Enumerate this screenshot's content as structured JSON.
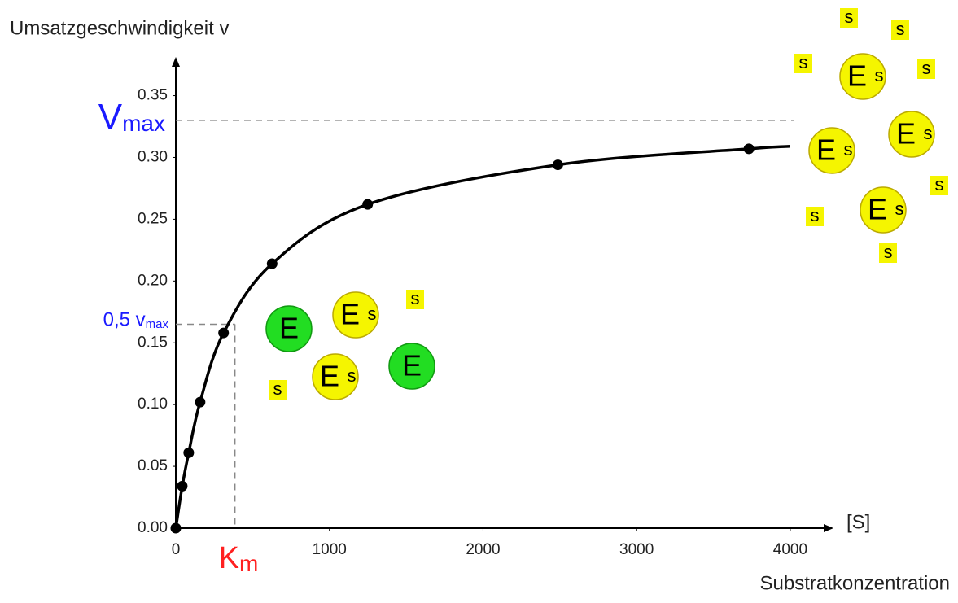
{
  "chart_data": {
    "type": "line",
    "y_label": "Umsatzgeschwindigkeit v",
    "x_arrow_label": "[S]",
    "x_label": "Substratkonzentration",
    "xlim": [
      0,
      4260
    ],
    "ylim": [
      0,
      0.38
    ],
    "xticks": [
      0,
      1000,
      2000,
      3000,
      4000
    ],
    "yticks": [
      {
        "value": 0,
        "label": "0.00"
      },
      {
        "value": 0.05,
        "label": "0.05"
      },
      {
        "value": 0.1,
        "label": "0.10"
      },
      {
        "value": 0.15,
        "label": "0.15"
      },
      {
        "value": 0.2,
        "label": "0.20"
      },
      {
        "value": 0.25,
        "label": "0.25"
      },
      {
        "value": 0.3,
        "label": "0.30"
      },
      {
        "value": 0.35,
        "label": "0.35"
      }
    ],
    "series": [
      {
        "color": "#000000",
        "markers": false,
        "x": [
          0,
          42,
          84,
          158,
          311,
          627,
          1249,
          2487,
          3731,
          4000
        ],
        "values": [
          0,
          0.034,
          0.061,
          0.102,
          0.158,
          0.214,
          0.262,
          0.294,
          0.307,
          0.309
        ]
      },
      {
        "color": "#000000",
        "markers": true,
        "x": [
          0,
          42,
          84,
          158,
          311,
          627,
          1249,
          2487,
          3731
        ],
        "values": [
          0,
          0.034,
          0.061,
          0.102,
          0.158,
          0.214,
          0.262,
          0.294,
          0.307
        ]
      }
    ],
    "vmax": {
      "value": 0.33,
      "label": "V",
      "sub": "max",
      "color": "#1a1aff"
    },
    "half_vmax": {
      "value": 0.165,
      "label": "0,5 v",
      "sub": "max",
      "color": "#1a1aff"
    },
    "km": {
      "value": 385,
      "label": "K",
      "sub": "m",
      "color": "#ff2020"
    },
    "enzyme_label": "E",
    "substrate_label": "s"
  }
}
